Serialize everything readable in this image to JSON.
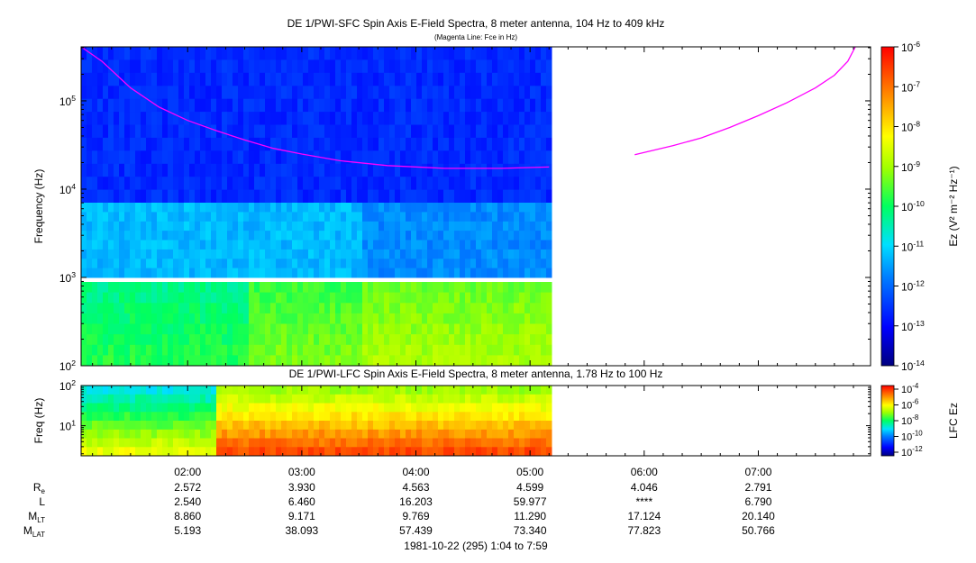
{
  "chart_data": [
    {
      "type": "heatmap",
      "title": "DE 1/PWI-SFC  Spin Axis E-Field Spectra, 8 meter antenna, 104 Hz to 409 kHz",
      "subtitle": "(Magenta Line: Fce in Hz)",
      "ylabel": "Frequency (Hz)",
      "yscale": "log",
      "ylim": [
        100,
        409000
      ],
      "y_ticks": [
        100,
        1000,
        10000,
        100000
      ],
      "y_tick_labels": [
        {
          "base": "10",
          "exp": "2"
        },
        {
          "base": "10",
          "exp": "3"
        },
        {
          "base": "10",
          "exp": "4"
        },
        {
          "base": "10",
          "exp": "5"
        }
      ],
      "data_coverage_end": "05:10",
      "fce_curve": {
        "color": "#ff00ff",
        "segments": [
          [
            [
              "01:04",
              409000
            ],
            [
              "01:15",
              280000
            ],
            [
              "01:30",
              140000
            ],
            [
              "01:45",
              85000
            ],
            [
              "02:00",
              60000
            ],
            [
              "02:15",
              46000
            ],
            [
              "02:30",
              36000
            ],
            [
              "02:45",
              29000
            ],
            [
              "03:00",
              25000
            ],
            [
              "03:20",
              21000
            ],
            [
              "03:45",
              18500
            ],
            [
              "04:15",
              17200
            ],
            [
              "04:45",
              17200
            ],
            [
              "05:10",
              17800
            ]
          ],
          [
            [
              "05:55",
              24500
            ],
            [
              "06:15",
              31000
            ],
            [
              "06:30",
              38000
            ],
            [
              "06:45",
              50000
            ],
            [
              "07:00",
              68000
            ],
            [
              "07:15",
              95000
            ],
            [
              "07:30",
              140000
            ],
            [
              "07:40",
              195000
            ],
            [
              "07:47",
              280000
            ],
            [
              "07:51",
              409000
            ]
          ]
        ]
      },
      "colorbar": {
        "label": "Ez (V² m⁻² Hz⁻¹)",
        "range": [
          1e-14,
          1e-06
        ],
        "tick_labels": [
          {
            "base": "10",
            "exp": "-6"
          },
          {
            "base": "10",
            "exp": "-7"
          },
          {
            "base": "10",
            "exp": "-8"
          },
          {
            "base": "10",
            "exp": "-9"
          },
          {
            "base": "10",
            "exp": "-10"
          },
          {
            "base": "10",
            "exp": "-11"
          },
          {
            "base": "10",
            "exp": "-12"
          },
          {
            "base": "10",
            "exp": "-13"
          },
          {
            "base": "10",
            "exp": "-14"
          }
        ]
      }
    },
    {
      "type": "heatmap",
      "title": "DE 1/PWI-LFC  Spin Axis E-Field Spectra, 8 meter antenna, 1.78 Hz to 100 Hz",
      "ylabel": "Freq (Hz)",
      "yscale": "log",
      "ylim": [
        1.78,
        100
      ],
      "y_tick_labels": [
        {
          "base": "10",
          "exp": "1"
        },
        {
          "base": "10",
          "exp": "2"
        }
      ],
      "data_coverage_end": "05:10",
      "colorbar": {
        "label": "LFC Ez",
        "range": [
          1e-12,
          0.0001
        ],
        "tick_labels": [
          {
            "base": "10",
            "exp": "-4"
          },
          {
            "base": "10",
            "exp": "-6"
          },
          {
            "base": "10",
            "exp": "-8"
          },
          {
            "base": "10",
            "exp": "-10"
          },
          {
            "base": "10",
            "exp": "-12"
          }
        ]
      }
    }
  ],
  "time_axis": {
    "start": "01:04",
    "end": "07:59",
    "tick_labels": [
      "02:00",
      "03:00",
      "04:00",
      "05:00",
      "06:00",
      "07:00"
    ]
  },
  "ephemeris": [
    {
      "label": "R",
      "sub": "e",
      "values": [
        "2.572",
        "3.930",
        "4.563",
        "4.599",
        "4.046",
        "2.791"
      ]
    },
    {
      "label": "L",
      "sub": "",
      "values": [
        "2.540",
        "6.460",
        "16.203",
        "59.977",
        "****",
        "6.790"
      ]
    },
    {
      "label": "M",
      "sub": "LT",
      "values": [
        "8.860",
        "9.171",
        "9.769",
        "11.290",
        "17.124",
        "20.140"
      ]
    },
    {
      "label": "M",
      "sub": "LAT",
      "values": [
        "5.193",
        "38.093",
        "57.439",
        "73.340",
        "77.823",
        "50.766"
      ]
    }
  ],
  "footer": "1981-10-22 (295) 1:04 to 7:59"
}
